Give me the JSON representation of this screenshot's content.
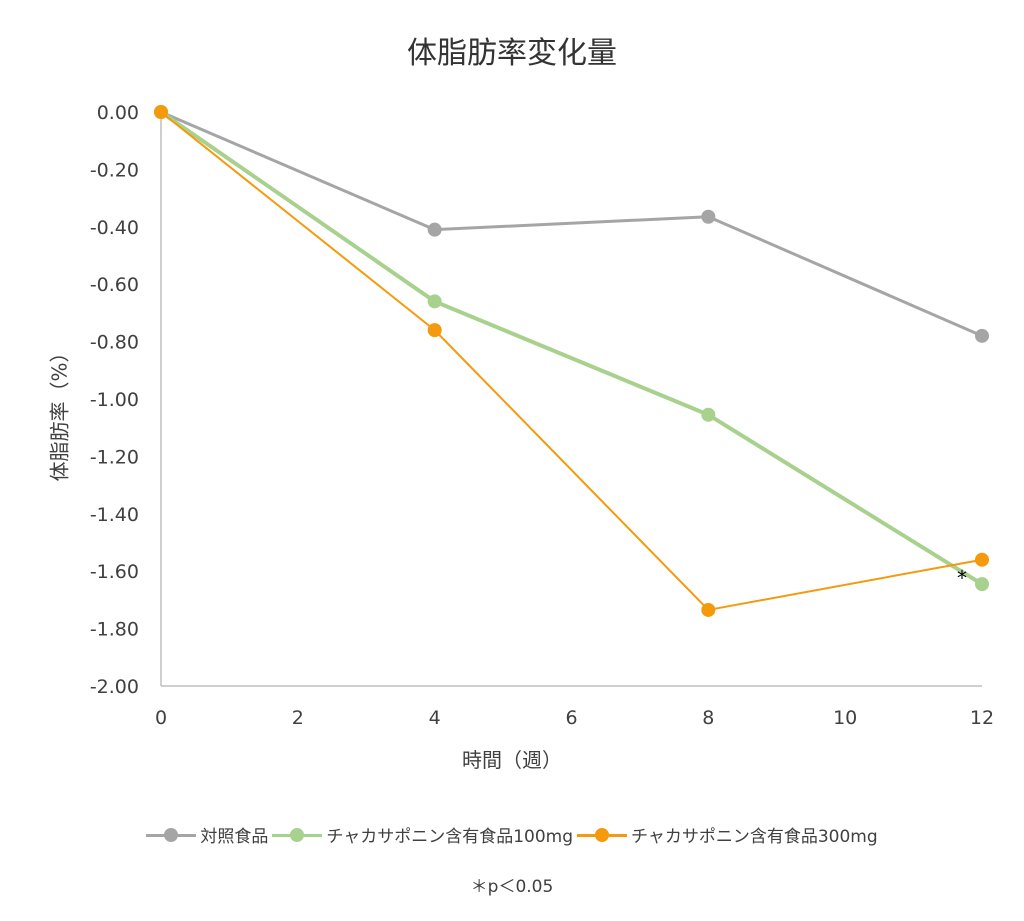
{
  "chart_data": {
    "type": "line",
    "title": "体脂肪率変化量",
    "xlabel": "時間（週）",
    "ylabel": "体脂肪率（%）",
    "xlim": [
      0,
      12
    ],
    "ylim": [
      -2.0,
      0.0
    ],
    "x_ticks": [
      "0",
      "2",
      "4",
      "6",
      "8",
      "10",
      "12"
    ],
    "y_ticks": [
      "0.00",
      "-0.20",
      "-0.40",
      "-0.60",
      "-0.80",
      "-1.00",
      "-1.20",
      "-1.40",
      "-1.60",
      "-1.80",
      "-2.00"
    ],
    "x": [
      0,
      4,
      8,
      12
    ],
    "grid": false,
    "legend_position": "bottom",
    "series": [
      {
        "name": "対照食品",
        "color": "#A5A5A5",
        "values": [
          0.0,
          -0.41,
          -0.365,
          -0.78
        ]
      },
      {
        "name": "チャカサポニン含有食品100mg",
        "color": "#A9D18E",
        "values": [
          0.0,
          -0.66,
          -1.055,
          -1.645
        ]
      },
      {
        "name": "チャカサポニン含有食品300mg",
        "color": "#F59A0C",
        "values": [
          0.0,
          -0.76,
          -1.735,
          -1.56
        ]
      }
    ],
    "annotations": [
      {
        "text": "*",
        "x": 12,
        "y": -1.6
      }
    ],
    "footnote": "＊p＜0.05"
  }
}
